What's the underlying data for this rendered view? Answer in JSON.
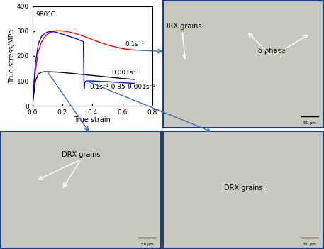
{
  "chart_data": {
    "type": "line",
    "xlabel": "True strain",
    "ylabel": "True stress/MPa",
    "annotations": [
      "980°C"
    ],
    "xlim": [
      0,
      0.8
    ],
    "xticks": [
      {
        "value": 0,
        "label": "0.0"
      },
      {
        "value": 0.2,
        "label": "0.2"
      },
      {
        "value": 0.4,
        "label": "0.4"
      },
      {
        "value": 0.6,
        "label": "0.6"
      },
      {
        "value": 0.8,
        "label": "0.8"
      }
    ],
    "ylim": [
      0,
      400
    ],
    "yticks": [
      0,
      100,
      200,
      300,
      400
    ],
    "series": [
      {
        "name": "0.1s⁻¹",
        "color": "#ff0000",
        "x": [
          0,
          0.02,
          0.04,
          0.06,
          0.08,
          0.1,
          0.13,
          0.16,
          0.2,
          0.25,
          0.3,
          0.35,
          0.4,
          0.45,
          0.5,
          0.55,
          0.6,
          0.65,
          0.68
        ],
        "values": [
          0,
          140,
          220,
          255,
          275,
          288,
          298,
          302,
          301,
          296,
          288,
          278,
          266,
          255,
          245,
          237,
          230,
          226,
          224
        ]
      },
      {
        "name": "0.001s⁻¹",
        "color": "#000000",
        "x": [
          0,
          0.02,
          0.04,
          0.06,
          0.08,
          0.1,
          0.15,
          0.2,
          0.3,
          0.4,
          0.5,
          0.6,
          0.68
        ],
        "values": [
          0,
          100,
          128,
          135,
          137,
          137,
          136,
          134,
          128,
          122,
          116,
          110,
          106
        ]
      },
      {
        "name": "0.1s⁻¹-0.35-0.001s⁻¹",
        "color": "#0000ff",
        "x": [
          0,
          0.02,
          0.04,
          0.06,
          0.08,
          0.1,
          0.12,
          0.15,
          0.2,
          0.25,
          0.3,
          0.34,
          0.345,
          0.35,
          0.36,
          0.4,
          0.5,
          0.6,
          0.68
        ],
        "values": [
          0,
          170,
          250,
          278,
          290,
          296,
          298,
          297,
          288,
          278,
          268,
          258,
          70,
          95,
          100,
          100,
          97,
          93,
          90
        ]
      }
    ]
  },
  "panels": [
    {
      "labels": [
        "DRX grains",
        "δ phase"
      ],
      "scale_bar": "50 μm"
    },
    {
      "labels": [
        "DRX grains"
      ],
      "scale_bar": "50 μm"
    },
    {
      "labels": [
        "DRX grains"
      ],
      "scale_bar": "50 μm"
    }
  ]
}
